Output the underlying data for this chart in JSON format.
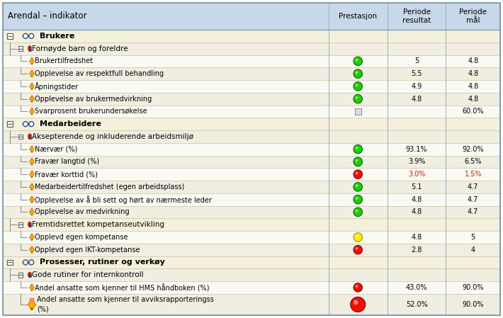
{
  "title_col": "Arendal – indikator",
  "bg_header": "#EDE8D0",
  "bg_level0": "#F5F0DC",
  "bg_level1_a": "#F5F0DC",
  "bg_level1_b": "#EDE8D0",
  "bg_data_a": "#FAFAF5",
  "bg_data_b": "#F0EEE0",
  "col1_bg": "#EDE8D0",
  "header_col_bg": "#C8D8E8",
  "border_col": "#B0C0D0",
  "text_dark": "#1A237E",
  "text_black": "#000000",
  "green": "#22CC00",
  "yellow": "#FFEE00",
  "red": "#EE1100",
  "rows": [
    {
      "level": 0,
      "text": "Brukere",
      "prestasjon": null,
      "resultat": null,
      "maal": null,
      "bold": true,
      "bg": "#F5F0DC"
    },
    {
      "level": 1,
      "text": "Fornøyde barn og foreldre",
      "prestasjon": null,
      "resultat": null,
      "maal": null,
      "bold": false,
      "bg": "#F0EEE0"
    },
    {
      "level": 2,
      "text": "Brukertilfredshet",
      "prestasjon": "green",
      "resultat": "5",
      "maal": "4.8",
      "bold": false,
      "bg": "#FAFAF5",
      "red_res": false
    },
    {
      "level": 2,
      "text": "Opplevelse av respektfull behandling",
      "prestasjon": "green",
      "resultat": "5.5",
      "maal": "4.8",
      "bold": false,
      "bg": "#F0EEE0",
      "red_res": false
    },
    {
      "level": 2,
      "text": "Åpningstider",
      "prestasjon": "green",
      "resultat": "4.9",
      "maal": "4.8",
      "bold": false,
      "bg": "#FAFAF5",
      "red_res": false
    },
    {
      "level": 2,
      "text": "Opplevelse av brukermedvirkning",
      "prestasjon": "green",
      "resultat": "4.8",
      "maal": "4.8",
      "bold": false,
      "bg": "#F0EEE0",
      "red_res": false
    },
    {
      "level": 2,
      "text": "Svarprosent brukerundersøkelse",
      "prestasjon": "square",
      "resultat": "",
      "maal": "60.0%",
      "bold": false,
      "bg": "#FAFAF5",
      "red_res": false
    },
    {
      "level": 0,
      "text": "Medarbeidere",
      "prestasjon": null,
      "resultat": null,
      "maal": null,
      "bold": true,
      "bg": "#F5F0DC"
    },
    {
      "level": 1,
      "text": "Aksepterende og inkluderende arbeidsmiljø",
      "prestasjon": null,
      "resultat": null,
      "maal": null,
      "bold": false,
      "bg": "#F0EEE0"
    },
    {
      "level": 2,
      "text": "Nærvær (%)",
      "prestasjon": "green",
      "resultat": "93.1%",
      "maal": "92.0%",
      "bold": false,
      "bg": "#FAFAF5",
      "red_res": false
    },
    {
      "level": 2,
      "text": "Fravær langtid (%)",
      "prestasjon": "green",
      "resultat": "3.9%",
      "maal": "6.5%",
      "bold": false,
      "bg": "#F0EEE0",
      "red_res": false
    },
    {
      "level": 2,
      "text": "Fravær korttid (%)",
      "prestasjon": "red",
      "resultat": "3.0%",
      "maal": "1.5%",
      "bold": false,
      "bg": "#FAFAF5",
      "red_res": true
    },
    {
      "level": 2,
      "text": "Medarbeidertilfredshet (egen arbeidsplass)",
      "prestasjon": "green",
      "resultat": "5.1",
      "maal": "4.7",
      "bold": false,
      "bg": "#F0EEE0",
      "red_res": false
    },
    {
      "level": 2,
      "text": "Opplevelse av å bli sett og hørt av nærmeste leder",
      "prestasjon": "green",
      "resultat": "4.8",
      "maal": "4.7",
      "bold": false,
      "bg": "#FAFAF5",
      "red_res": false
    },
    {
      "level": 2,
      "text": "Opplevelse av medvirkning",
      "prestasjon": "green",
      "resultat": "4.8",
      "maal": "4.7",
      "bold": false,
      "bg": "#F0EEE0",
      "red_res": false
    },
    {
      "level": 1,
      "text": "Fremtidsrettet kompetanseutvikling",
      "prestasjon": null,
      "resultat": null,
      "maal": null,
      "bold": false,
      "bg": "#F5F0DC"
    },
    {
      "level": 2,
      "text": "Opplevd egen kompetanse",
      "prestasjon": "yellow",
      "resultat": "4.8",
      "maal": "5",
      "bold": false,
      "bg": "#FAFAF5",
      "red_res": false
    },
    {
      "level": 2,
      "text": "Opplevd egen IKT-kompetanse",
      "prestasjon": "red",
      "resultat": "2.8",
      "maal": "4",
      "bold": false,
      "bg": "#F0EEE0",
      "red_res": false
    },
    {
      "level": 0,
      "text": "Prosesser, rutiner og verkøy",
      "prestasjon": null,
      "resultat": null,
      "maal": null,
      "bold": true,
      "bg": "#F5F0DC"
    },
    {
      "level": 1,
      "text": "Gode rutiner for internkontroll",
      "prestasjon": null,
      "resultat": null,
      "maal": null,
      "bold": false,
      "bg": "#F0EEE0"
    },
    {
      "level": 2,
      "text": "Andel ansatte som kjenner til HMS håndboken (%)",
      "prestasjon": "red",
      "resultat": "43.0%",
      "maal": "90.0%",
      "bold": false,
      "bg": "#FAFAF5",
      "red_res": false
    },
    {
      "level": 2,
      "text": "Andel ansatte som kjenner til avviksrapporteringssystemet (%)",
      "prestasjon": "red",
      "resultat": "52.0%",
      "maal": "90.0%",
      "bold": false,
      "bg": "#F0EEE0",
      "red_res": false,
      "wrap": true
    }
  ]
}
